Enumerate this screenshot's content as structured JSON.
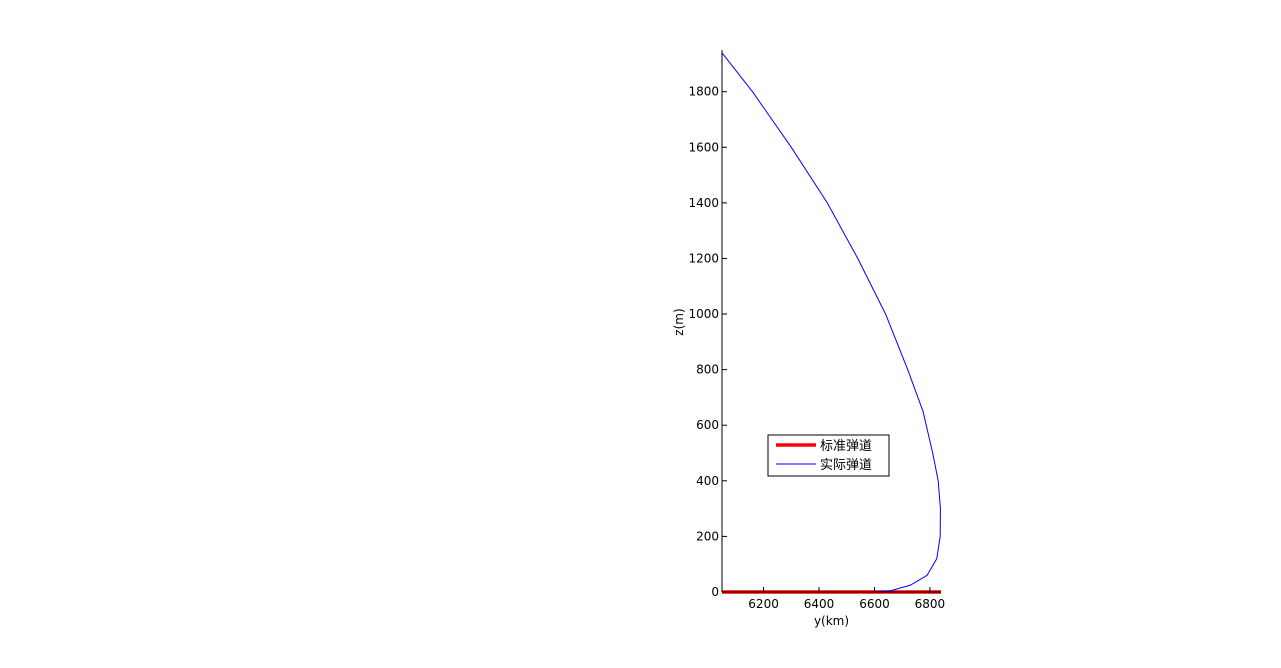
{
  "chart_data": {
    "type": "line",
    "xlabel": "y(km)",
    "ylabel": "z(m)",
    "xlim": [
      6050,
      6840
    ],
    "ylim": [
      0,
      1950
    ],
    "xticks": [
      6200,
      6400,
      6600,
      6800
    ],
    "yticks": [
      0,
      200,
      400,
      600,
      800,
      1000,
      1200,
      1400,
      1600,
      1800
    ],
    "grid": false,
    "legend_position": "center",
    "series": [
      {
        "name": "标准弹道",
        "color": "#ff0000",
        "x": [
          6050,
          6840
        ],
        "y": [
          0,
          0
        ]
      },
      {
        "name": "实际弹道",
        "color": "#0000ff",
        "x": [
          6050,
          6160,
          6300,
          6430,
          6540,
          6640,
          6720,
          6775,
          6810,
          6830,
          6838,
          6837,
          6825,
          6790,
          6730,
          6660,
          6600
        ],
        "y": [
          1940,
          1800,
          1600,
          1400,
          1200,
          1000,
          800,
          650,
          500,
          400,
          300,
          200,
          120,
          60,
          25,
          5,
          0
        ]
      }
    ]
  }
}
